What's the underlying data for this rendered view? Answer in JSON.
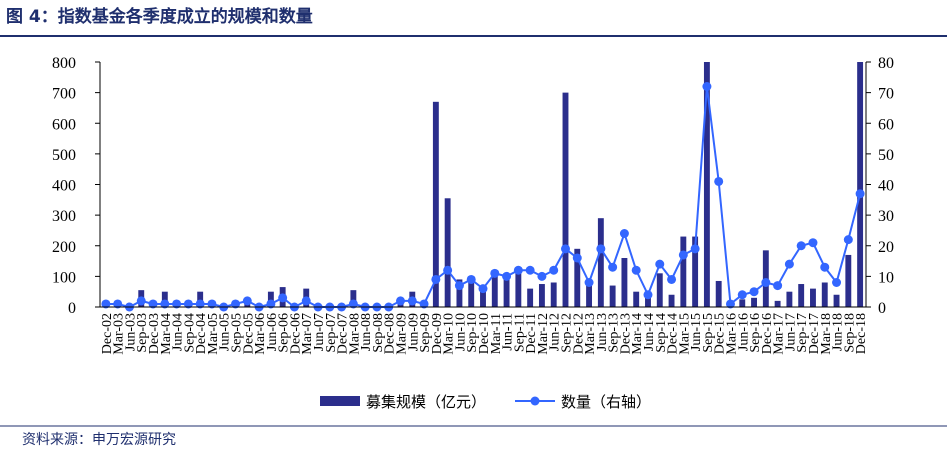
{
  "chart_data": {
    "type": "bar-line",
    "title": "图 4：指数基金各季度成立的规模和数量",
    "source": "资料来源：申万宏源研究",
    "categories": [
      "Dec-02",
      "Mar-03",
      "Jun-03",
      "Sep-03",
      "Dec-03",
      "Mar-04",
      "Jun-04",
      "Sep-04",
      "Dec-04",
      "Mar-05",
      "Jun-05",
      "Sep-05",
      "Dec-05",
      "Mar-06",
      "Jun-06",
      "Sep-06",
      "Dec-06",
      "Mar-07",
      "Jun-07",
      "Sep-07",
      "Dec-07",
      "Mar-08",
      "Jun-08",
      "Sep-08",
      "Dec-08",
      "Mar-09",
      "Jun-09",
      "Sep-09",
      "Dec-09",
      "Mar-10",
      "Jun-10",
      "Sep-10",
      "Dec-10",
      "Mar-11",
      "Jun-11",
      "Sep-11",
      "Dec-11",
      "Mar-12",
      "Jun-12",
      "Sep-12",
      "Dec-12",
      "Mar-13",
      "Jun-13",
      "Sep-13",
      "Dec-13",
      "Mar-14",
      "Jun-14",
      "Sep-14",
      "Dec-14",
      "Mar-15",
      "Jun-15",
      "Sep-15",
      "Dec-15",
      "Mar-16",
      "Jun-16",
      "Sep-16",
      "Dec-16",
      "Mar-17",
      "Jun-17",
      "Sep-17",
      "Dec-17",
      "Mar-18",
      "Jun-18",
      "Sep-18",
      "Dec-18"
    ],
    "series": [
      {
        "name": "募集规模（亿元）",
        "color": "#2b2e8c",
        "values": [
          10,
          5,
          0,
          55,
          10,
          50,
          10,
          10,
          50,
          5,
          0,
          10,
          25,
          5,
          50,
          65,
          5,
          60,
          5,
          0,
          0,
          55,
          0,
          0,
          0,
          20,
          50,
          5,
          670,
          355,
          90,
          80,
          60,
          100,
          90,
          110,
          60,
          75,
          80,
          700,
          190,
          70,
          290,
          70,
          160,
          50,
          35,
          110,
          40,
          230,
          230,
          800,
          85,
          10,
          25,
          30,
          185,
          20,
          50,
          75,
          60,
          80,
          40,
          170,
          800
        ]
      },
      {
        "name": "数量（右轴）",
        "color": "#3366ff",
        "axis": "y2",
        "values": [
          1,
          1,
          0,
          2,
          1,
          1,
          1,
          1,
          1,
          1,
          0,
          1,
          2,
          0,
          1,
          3,
          0,
          2,
          0,
          0,
          0,
          1,
          0,
          0,
          0,
          2,
          2,
          1,
          9,
          12,
          7,
          9,
          6,
          11,
          10,
          12,
          12,
          10,
          12,
          19,
          16,
          8,
          19,
          13,
          24,
          12,
          4,
          14,
          9,
          17,
          19,
          72,
          41,
          1,
          4,
          5,
          8,
          7,
          14,
          20,
          21,
          13,
          8,
          22,
          37
        ]
      }
    ],
    "ylim": [
      0,
      800
    ],
    "yticks": [
      0,
      100,
      200,
      300,
      400,
      500,
      600,
      700,
      800
    ],
    "y2lim": [
      0,
      80
    ],
    "y2ticks": [
      0,
      10,
      20,
      30,
      40,
      50,
      60,
      70,
      80
    ]
  }
}
